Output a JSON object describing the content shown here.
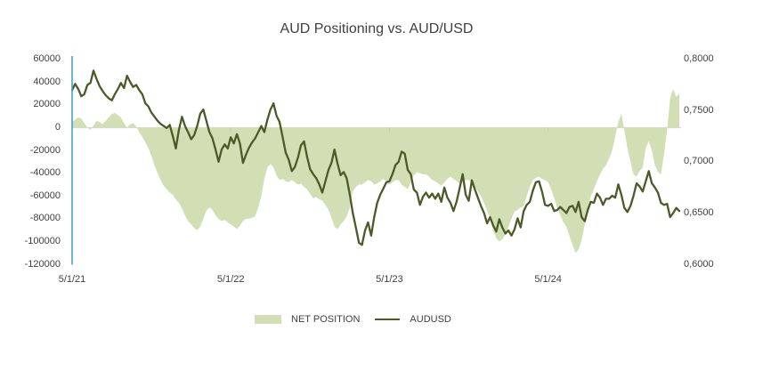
{
  "title": "AUD Positioning vs. AUD/USD",
  "legend": [
    {
      "label": "NET POSITION",
      "type": "area",
      "color": "#d2dfb5"
    },
    {
      "label": "AUDUSD",
      "type": "line",
      "color": "#4c5a28"
    }
  ],
  "colors": {
    "area_fill": "#d2dfb5",
    "line_stroke": "#4c5a28",
    "zero_gridline": "#d8d8d8",
    "x_tick_mark": "#c3c9b2",
    "value_axis_line": "#41a3c7",
    "text": "#404040",
    "background": "#ffffff"
  },
  "chart_data": {
    "type": "area+line combo, dual axis",
    "title": "AUD Positioning vs. AUD/USD",
    "grid": "single horizontal gridline at zero only",
    "legend_position": "bottom",
    "x_axis": {
      "tick_labels": [
        "5/1/21",
        "5/1/22",
        "5/1/23",
        "5/1/24"
      ],
      "tick_positions": [
        0,
        52,
        104,
        156
      ],
      "frequency": "weekly points"
    },
    "left_axis": {
      "min": -120000,
      "max": 60000,
      "tick_values": [
        60000,
        40000,
        20000,
        0,
        -20000,
        -40000,
        -60000,
        -80000,
        -100000,
        -120000
      ],
      "tick_labels": [
        "60000",
        "40000",
        "20000",
        "0",
        "-20000",
        "-40000",
        "-60000",
        "-80000",
        "-100000",
        "-120000"
      ]
    },
    "right_axis": {
      "min": 0.6,
      "max": 0.8,
      "tick_values": [
        0.8,
        0.75,
        0.7,
        0.65,
        0.6
      ],
      "tick_labels": [
        "0,8000",
        "0,7500",
        "0,7000",
        "0,6500",
        "0,6000"
      ]
    },
    "series": [
      {
        "name": "NET POSITION",
        "type": "area",
        "axis": "left",
        "color": "#d2dfb5",
        "values": [
          5000,
          7000,
          9000,
          8000,
          4000,
          0,
          -2000,
          2000,
          6000,
          5000,
          3000,
          6000,
          9000,
          12000,
          13000,
          11000,
          9000,
          4000,
          0,
          3000,
          4000,
          1000,
          -4000,
          -8000,
          -13000,
          -18000,
          -25000,
          -33000,
          -40000,
          -46000,
          -51000,
          -54000,
          -57000,
          -59000,
          -63000,
          -66000,
          -71000,
          -77000,
          -82000,
          -85000,
          -88000,
          -90000,
          -87000,
          -80000,
          -73000,
          -70000,
          -72000,
          -77000,
          -80000,
          -82000,
          -81000,
          -83000,
          -85000,
          -87000,
          -89000,
          -86000,
          -82000,
          -80000,
          -80000,
          -79000,
          -78000,
          -70000,
          -60000,
          -45000,
          -35000,
          -32000,
          -35000,
          -42000,
          -46000,
          -45000,
          -47000,
          -48000,
          -46000,
          -48000,
          -50000,
          -49000,
          -52000,
          -54000,
          -58000,
          -62000,
          -61000,
          -63000,
          -64000,
          -68000,
          -72000,
          -79000,
          -87000,
          -89000,
          -85000,
          -82000,
          -78000,
          -70000,
          -56000,
          -52000,
          -50000,
          -50000,
          -48000,
          -46000,
          -47000,
          -50000,
          -49000,
          -47000,
          -45000,
          -47000,
          -50000,
          -48000,
          -46000,
          -46000,
          -50000,
          -52000,
          -54000,
          -48000,
          -42000,
          -39000,
          -40000,
          -41000,
          -41000,
          -43000,
          -46000,
          -47000,
          -49000,
          -51000,
          -48000,
          -45000,
          -43000,
          -45000,
          -47000,
          -49000,
          -48000,
          -46000,
          -46000,
          -48000,
          -52000,
          -56000,
          -60000,
          -66000,
          -73000,
          -80000,
          -90000,
          -97000,
          -100000,
          -98000,
          -94000,
          -87000,
          -80000,
          -74000,
          -72000,
          -70000,
          -69000,
          -60000,
          -52000,
          -46000,
          -44000,
          -43000,
          -45000,
          -46000,
          -48000,
          -54000,
          -62000,
          -70000,
          -77000,
          -83000,
          -87000,
          -95000,
          -103000,
          -110000,
          -107000,
          -99000,
          -85000,
          -72000,
          -60000,
          -54000,
          -47000,
          -41000,
          -36000,
          -33000,
          -27000,
          -20000,
          -8000,
          5000,
          12000,
          -2000,
          -18000,
          -30000,
          -41000,
          -43000,
          -38000,
          -35000,
          -18000,
          -12000,
          -20000,
          -33000,
          -39000,
          -41000,
          -23000,
          -2000,
          26000,
          34000,
          27000,
          30000
        ]
      },
      {
        "name": "AUDUSD",
        "type": "line",
        "axis": "right",
        "color": "#4c5a28",
        "values": [
          0.77,
          0.776,
          0.771,
          0.764,
          0.766,
          0.775,
          0.777,
          0.789,
          0.781,
          0.774,
          0.769,
          0.765,
          0.762,
          0.76,
          0.766,
          0.771,
          0.777,
          0.772,
          0.784,
          0.778,
          0.773,
          0.775,
          0.77,
          0.766,
          0.757,
          0.754,
          0.748,
          0.744,
          0.74,
          0.737,
          0.735,
          0.733,
          0.736,
          0.725,
          0.713,
          0.731,
          0.744,
          0.735,
          0.729,
          0.722,
          0.726,
          0.735,
          0.747,
          0.751,
          0.74,
          0.729,
          0.723,
          0.712,
          0.7,
          0.712,
          0.717,
          0.713,
          0.724,
          0.718,
          0.727,
          0.718,
          0.699,
          0.707,
          0.714,
          0.719,
          0.723,
          0.729,
          0.735,
          0.729,
          0.741,
          0.751,
          0.757,
          0.745,
          0.739,
          0.724,
          0.709,
          0.702,
          0.691,
          0.695,
          0.704,
          0.716,
          0.72,
          0.705,
          0.693,
          0.688,
          0.684,
          0.678,
          0.67,
          0.681,
          0.692,
          0.699,
          0.712,
          0.698,
          0.687,
          0.69,
          0.684,
          0.668,
          0.65,
          0.636,
          0.621,
          0.619,
          0.633,
          0.641,
          0.628,
          0.646,
          0.66,
          0.668,
          0.674,
          0.68,
          0.681,
          0.688,
          0.697,
          0.7,
          0.71,
          0.708,
          0.692,
          0.688,
          0.673,
          0.67,
          0.658,
          0.666,
          0.67,
          0.665,
          0.669,
          0.664,
          0.669,
          0.661,
          0.675,
          0.665,
          0.66,
          0.652,
          0.661,
          0.674,
          0.688,
          0.668,
          0.662,
          0.682,
          0.673,
          0.665,
          0.657,
          0.65,
          0.64,
          0.646,
          0.638,
          0.632,
          0.644,
          0.636,
          0.63,
          0.633,
          0.628,
          0.634,
          0.645,
          0.636,
          0.652,
          0.658,
          0.661,
          0.672,
          0.68,
          0.681,
          0.671,
          0.658,
          0.657,
          0.659,
          0.652,
          0.653,
          0.656,
          0.653,
          0.65,
          0.656,
          0.657,
          0.651,
          0.661,
          0.646,
          0.642,
          0.653,
          0.661,
          0.66,
          0.669,
          0.665,
          0.658,
          0.664,
          0.664,
          0.667,
          0.665,
          0.678,
          0.668,
          0.655,
          0.651,
          0.657,
          0.667,
          0.679,
          0.676,
          0.671,
          0.681,
          0.691,
          0.679,
          0.675,
          0.67,
          0.66,
          0.658,
          0.659,
          0.646,
          0.65,
          0.655,
          0.652
        ]
      }
    ]
  }
}
